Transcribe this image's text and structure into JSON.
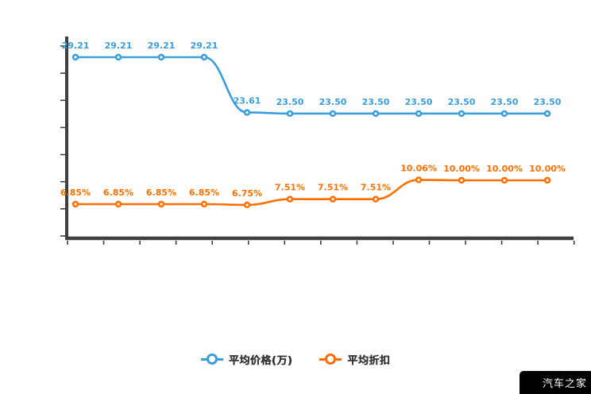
{
  "watermark": {
    "label": "汽车之家",
    "bg": "#000000",
    "color": "#ffffff"
  },
  "legend": [
    {
      "label": "平均价格(万)",
      "color": "#3b9edb"
    },
    {
      "label": "平均折扣",
      "color": "#ff6f00"
    }
  ],
  "chart_data": {
    "type": "line",
    "title": "",
    "xlabel": "",
    "ylabel": "",
    "x": [
      1,
      2,
      3,
      4,
      5,
      6,
      7,
      8,
      9,
      10,
      11,
      12
    ],
    "x_tick_labels": [],
    "grid": false,
    "legend_position": "bottom",
    "axes": {
      "color": "#3f3f3f",
      "y_tick_count": 8,
      "x_tick_count": 15,
      "tick_labels_visible": false
    },
    "series": [
      {
        "name": "平均价格(万)",
        "color": "#3b9edb",
        "unit": "万",
        "values": [
          29.21,
          29.21,
          29.21,
          29.21,
          23.61,
          23.5,
          23.5,
          23.5,
          23.5,
          23.5,
          23.5,
          23.5
        ],
        "labels": [
          "29.21",
          "29.21",
          "29.21",
          "29.21",
          "23.61",
          "23.50",
          "23.50",
          "23.50",
          "23.50",
          "23.50",
          "23.50",
          "23.50"
        ]
      },
      {
        "name": "平均折扣",
        "color": "#ff6f00",
        "unit": "%",
        "values": [
          6.85,
          6.85,
          6.85,
          6.85,
          6.75,
          7.51,
          7.51,
          7.51,
          10.06,
          10.0,
          10.0,
          10.0
        ],
        "labels": [
          "6.85%",
          "6.85%",
          "6.85%",
          "6.85%",
          "6.75%",
          "7.51%",
          "7.51%",
          "7.51%",
          "10.06%",
          "10.00%",
          "10.00%",
          "10.00%"
        ]
      }
    ]
  }
}
